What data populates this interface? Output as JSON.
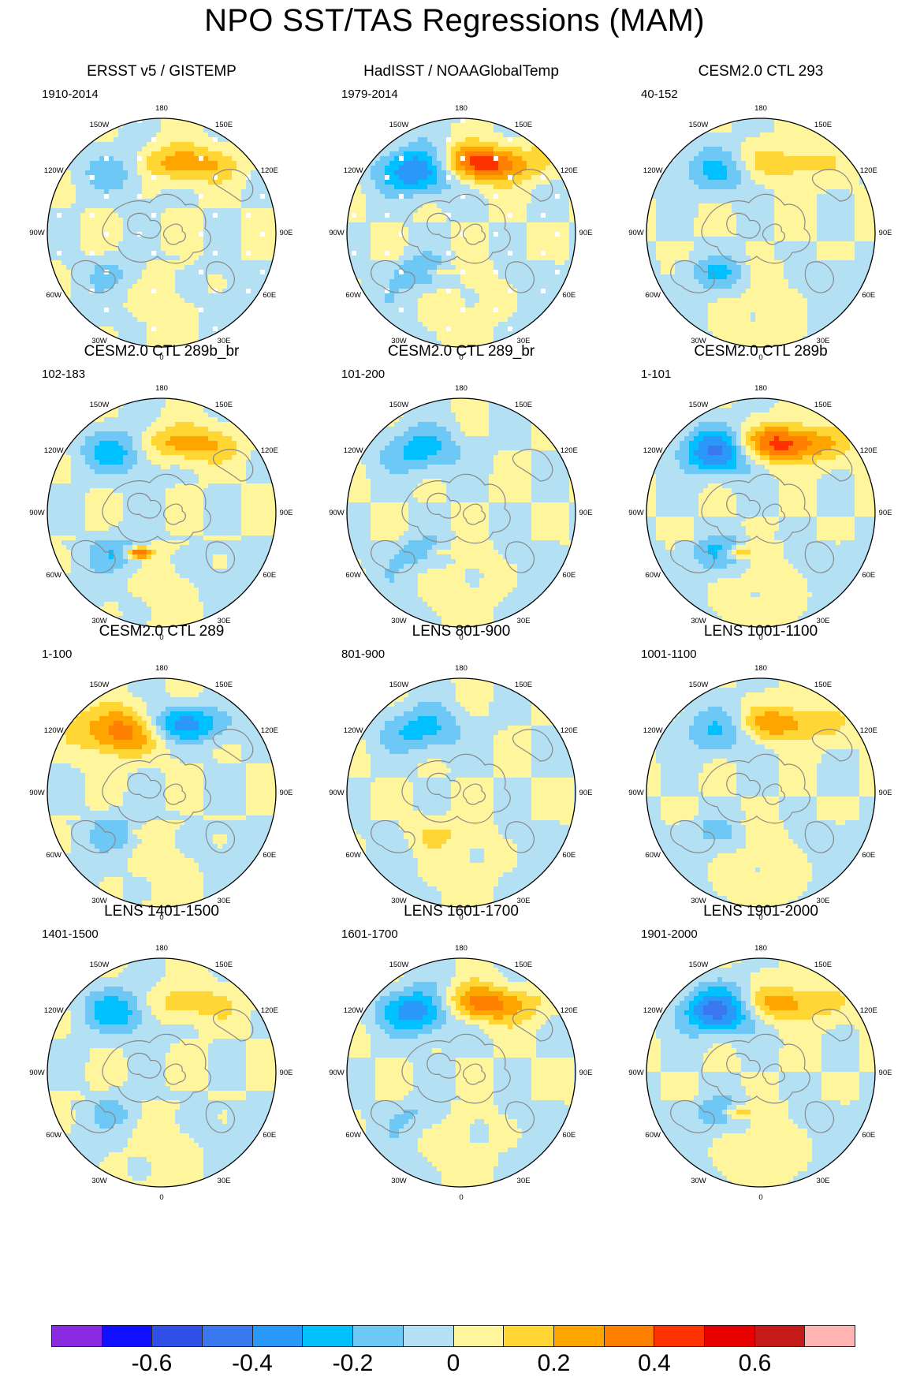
{
  "title": "NPO SST/TAS Regressions (MAM)",
  "polar_labels": [
    "180",
    "150E",
    "120E",
    "90E",
    "60E",
    "30E",
    "0",
    "30W",
    "60W",
    "90W",
    "120W",
    "150W"
  ],
  "panels": [
    {
      "title": "ERSST v5 / GISTEMP",
      "years": "1910-2014",
      "pattern": {
        "b": [
          -0.2,
          1.3
        ],
        "a": [
          0.3,
          1.0
        ],
        "g": [
          -0.1,
          0.5
        ],
        "x": 0.0,
        "holes": true
      }
    },
    {
      "title": "HadISST / NOAAGlobalTemp",
      "years": "1979-2014",
      "pattern": {
        "b": [
          -0.5,
          1.3
        ],
        "a": [
          0.5,
          1.0
        ],
        "g": [
          -0.2,
          0.5
        ],
        "x": 0.15,
        "holes": true
      }
    },
    {
      "title": "CESM2.0 CTL 293",
      "years": "40-152",
      "pattern": {
        "b": [
          -0.25,
          0.6
        ],
        "a": [
          0.2,
          0.5
        ],
        "g": [
          -0.2,
          0.3
        ],
        "x": 0.0,
        "holes": false
      }
    },
    {
      "title": "CESM2.0 CTL 289b_br",
      "years": "102-183",
      "pattern": {
        "b": [
          -0.3,
          0.9
        ],
        "a": [
          0.3,
          0.8
        ],
        "g": [
          -0.2,
          0.4
        ],
        "x": 0.5,
        "holes": false
      }
    },
    {
      "title": "CESM2.0 CTL 289_br",
      "years": "101-200",
      "pattern": {
        "b": [
          -0.25,
          0.9
        ],
        "a": [
          0.0,
          0.8
        ],
        "g": [
          -0.15,
          0.3
        ],
        "x": 0.1,
        "holes": false
      }
    },
    {
      "title": "CESM2.0 CTL 289b",
      "years": "1-101",
      "pattern": {
        "b": [
          -0.5,
          1.0
        ],
        "a": [
          0.5,
          1.0
        ],
        "g": [
          -0.2,
          0.4
        ],
        "x": 0.3,
        "holes": false
      }
    },
    {
      "title": "CESM2.0 CTL 289",
      "years": "1-100",
      "pattern": {
        "b": [
          0.45,
          1.0
        ],
        "a": [
          -0.35,
          1.0
        ],
        "g": [
          -0.15,
          0.35
        ],
        "x": 0.1,
        "holes": false
      }
    },
    {
      "title": "LENS 801-900",
      "years": "801-900",
      "pattern": {
        "b": [
          -0.25,
          0.8
        ],
        "a": [
          0.0,
          0.6
        ],
        "g": [
          0.1,
          0.4
        ],
        "x": 0.0,
        "holes": false
      }
    },
    {
      "title": "LENS 1001-1100",
      "years": "1001-1100",
      "pattern": {
        "b": [
          -0.25,
          0.8
        ],
        "a": [
          0.3,
          0.9
        ],
        "g": [
          -0.1,
          0.35
        ],
        "x": 0.0,
        "holes": false
      }
    },
    {
      "title": "LENS 1401-1500",
      "years": "1401-1500",
      "pattern": {
        "b": [
          -0.3,
          0.9
        ],
        "a": [
          0.2,
          0.8
        ],
        "g": [
          -0.1,
          0.35
        ],
        "x": 0.0,
        "holes": false
      }
    },
    {
      "title": "LENS 1601-1700",
      "years": "1601-1700",
      "pattern": {
        "b": [
          -0.45,
          1.0
        ],
        "a": [
          0.4,
          1.0
        ],
        "g": [
          -0.1,
          0.35
        ],
        "x": 0.0,
        "holes": false
      }
    },
    {
      "title": "LENS 1901-2000",
      "years": "1901-2000",
      "pattern": {
        "b": [
          -0.5,
          1.0
        ],
        "a": [
          0.3,
          0.9
        ],
        "g": [
          -0.15,
          0.35
        ],
        "x": 0.25,
        "holes": false
      }
    }
  ],
  "colorbar": {
    "colors": [
      "#8a2be2",
      "#1010ff",
      "#3050e8",
      "#3a78f0",
      "#2a98f8",
      "#00c0ff",
      "#6ec8f5",
      "#b3e0f2",
      "#fff59d",
      "#ffd633",
      "#ffa500",
      "#ff7f00",
      "#ff3300",
      "#e60000",
      "#c41a1a",
      "#ffb3b3"
    ],
    "tick_labels": [
      "-0.6",
      "-0.4",
      "-0.2",
      "0",
      "0.2",
      "0.4",
      "0.6"
    ]
  }
}
